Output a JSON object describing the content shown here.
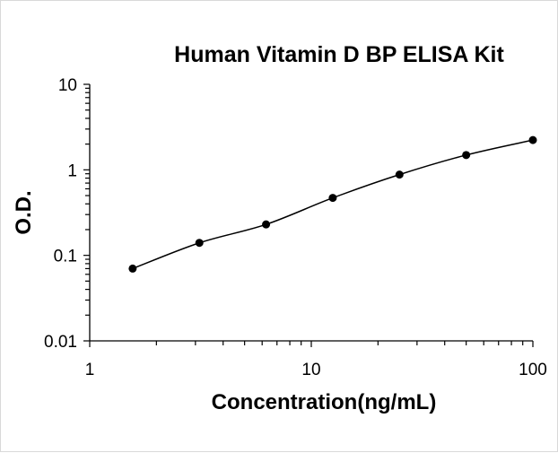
{
  "chart_data": {
    "type": "scatter",
    "title": "Human Vitamin D BP ELISA Kit",
    "xlabel": "Concentration(ng/mL)",
    "ylabel": "O.D.",
    "x_scale": "log",
    "y_scale": "log",
    "xlim": [
      1,
      100
    ],
    "ylim": [
      0.01,
      10
    ],
    "x_ticks": [
      "1",
      "10",
      "100"
    ],
    "y_ticks": [
      "0.01",
      "0.1",
      "1",
      "10"
    ],
    "grid": false,
    "legend": "none",
    "series": [
      {
        "x": [
          1.5625,
          3.125,
          6.25,
          12.5,
          25,
          50,
          100
        ],
        "y": [
          0.07,
          0.14,
          0.23,
          0.47,
          0.88,
          1.49,
          2.23
        ],
        "marker_color": "#000000",
        "line_color": "#000000",
        "fit": "smooth curve"
      }
    ]
  }
}
